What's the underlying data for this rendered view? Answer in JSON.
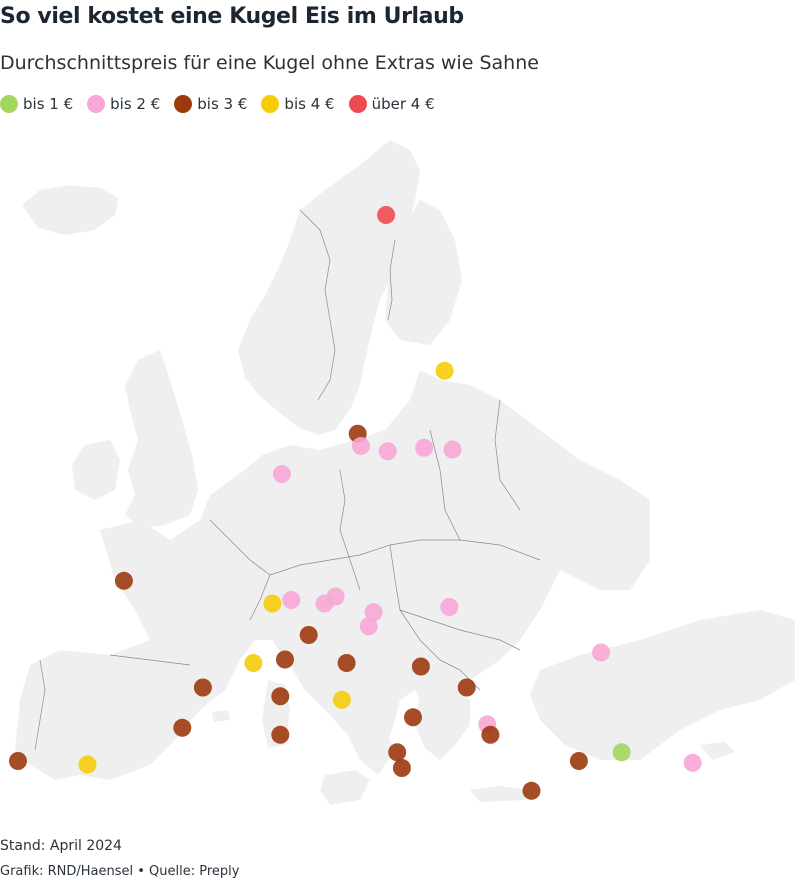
{
  "header": {
    "title": "So viel kostet eine Kugel Eis im Urlaub",
    "subtitle": "Durchschnittspreis für eine Kugel ohne Extras wie Sahne"
  },
  "legend": [
    {
      "key": "b1",
      "label": "bis 1 €",
      "color": "#a3d65c"
    },
    {
      "key": "b2",
      "label": "bis 2 €",
      "color": "#f7a6d6"
    },
    {
      "key": "b3",
      "label": "bis 3 €",
      "color": "#9c3a0f"
    },
    {
      "key": "b4",
      "label": "bis 4 €",
      "color": "#f5cc0a"
    },
    {
      "key": "u4",
      "label": "über 4 €",
      "color": "#ee4b50"
    }
  ],
  "footer": {
    "stand": "Stand: April 2024",
    "credit": "Grafik: RND/Haensel • Quelle: Preply"
  },
  "map_data": {
    "projection": "lon/lat (Europe, approx. 11°W–39°E, 34°N–72°N)",
    "points": [
      {
        "lon": 14.4,
        "lat": 68.2,
        "cat": "u4"
      },
      {
        "lon": 18.1,
        "lat": 59.3,
        "cat": "b4"
      },
      {
        "lon": 12.6,
        "lat": 55.7,
        "cat": "b3"
      },
      {
        "lon": 12.8,
        "lat": 55.0,
        "cat": "b2"
      },
      {
        "lon": 14.5,
        "lat": 54.7,
        "cat": "b2"
      },
      {
        "lon": 16.8,
        "lat": 54.9,
        "cat": "b2"
      },
      {
        "lon": 18.6,
        "lat": 54.8,
        "cat": "b2"
      },
      {
        "lon": 7.8,
        "lat": 53.4,
        "cat": "b2"
      },
      {
        "lon": -2.2,
        "lat": 47.3,
        "cat": "b3"
      },
      {
        "lon": 7.2,
        "lat": 46.0,
        "cat": "b4"
      },
      {
        "lon": 8.4,
        "lat": 46.2,
        "cat": "b2"
      },
      {
        "lon": 10.5,
        "lat": 46.0,
        "cat": "b2"
      },
      {
        "lon": 11.2,
        "lat": 46.4,
        "cat": "b2"
      },
      {
        "lon": 13.6,
        "lat": 45.5,
        "cat": "b2"
      },
      {
        "lon": 13.3,
        "lat": 44.7,
        "cat": "b2"
      },
      {
        "lon": 18.4,
        "lat": 45.8,
        "cat": "b2"
      },
      {
        "lon": 28.0,
        "lat": 43.2,
        "cat": "b2"
      },
      {
        "lon": 9.5,
        "lat": 44.2,
        "cat": "b3"
      },
      {
        "lon": 8.0,
        "lat": 42.8,
        "cat": "b3"
      },
      {
        "lon": 11.9,
        "lat": 42.6,
        "cat": "b3"
      },
      {
        "lon": 16.6,
        "lat": 42.4,
        "cat": "b3"
      },
      {
        "lon": 19.5,
        "lat": 41.2,
        "cat": "b3"
      },
      {
        "lon": 6.0,
        "lat": 42.6,
        "cat": "b4"
      },
      {
        "lon": 2.8,
        "lat": 41.2,
        "cat": "b3"
      },
      {
        "lon": 7.7,
        "lat": 40.7,
        "cat": "b3"
      },
      {
        "lon": 11.6,
        "lat": 40.5,
        "cat": "b4"
      },
      {
        "lon": 16.1,
        "lat": 39.5,
        "cat": "b3"
      },
      {
        "lon": 20.8,
        "lat": 39.1,
        "cat": "b2"
      },
      {
        "lon": 21.0,
        "lat": 38.5,
        "cat": "b3"
      },
      {
        "lon": 1.5,
        "lat": 38.9,
        "cat": "b3"
      },
      {
        "lon": 7.7,
        "lat": 38.5,
        "cat": "b3"
      },
      {
        "lon": -8.9,
        "lat": 37.0,
        "cat": "b3"
      },
      {
        "lon": -4.5,
        "lat": 36.8,
        "cat": "b4"
      },
      {
        "lon": 15.1,
        "lat": 37.5,
        "cat": "b3"
      },
      {
        "lon": 15.4,
        "lat": 36.6,
        "cat": "b3"
      },
      {
        "lon": 26.6,
        "lat": 37.0,
        "cat": "b3"
      },
      {
        "lon": 29.3,
        "lat": 37.5,
        "cat": "b1"
      },
      {
        "lon": 33.8,
        "lat": 36.9,
        "cat": "b2"
      },
      {
        "lon": 23.6,
        "lat": 35.3,
        "cat": "b3"
      }
    ]
  }
}
